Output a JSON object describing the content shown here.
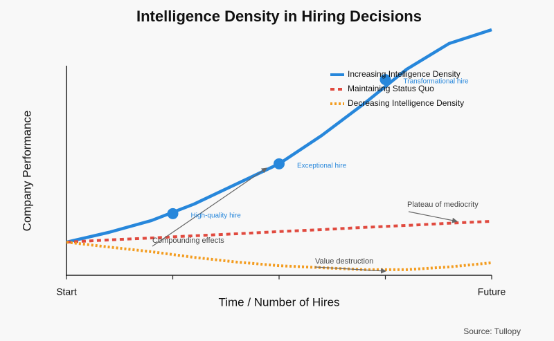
{
  "chart_data": {
    "type": "line",
    "title": "Intelligence Density in Hiring Decisions",
    "xlabel": "Time / Number of Hires",
    "ylabel": "Company Performance",
    "source": "Source: Tullopy",
    "x": [
      0,
      1,
      2,
      3,
      4,
      5,
      6,
      7,
      8,
      9,
      10
    ],
    "xlim": [
      0,
      10
    ],
    "xticks": [
      {
        "value": 0,
        "label": "Start"
      },
      {
        "value": 2.5,
        "label": null
      },
      {
        "value": 5,
        "label": null
      },
      {
        "value": 7.5,
        "label": null
      },
      {
        "value": 10,
        "label": "Future"
      }
    ],
    "ylim": [
      0,
      100
    ],
    "legend": "upper right",
    "series": [
      {
        "name": "Increasing Intelligence Density",
        "color": "#2787db",
        "style": "solid",
        "values": [
          13.5,
          17.5,
          22.3,
          29,
          37.2,
          45.4,
          56.9,
          69.9,
          83.9,
          94.4,
          100
        ]
      },
      {
        "name": "Maintaining Status Quo",
        "color": "#e04a3f",
        "style": "dashed",
        "values": [
          13.5,
          14.4,
          15.2,
          16.1,
          16.9,
          17.8,
          18.6,
          19.5,
          20.3,
          21.2,
          22
        ]
      },
      {
        "name": "Decreasing Intelligence Density",
        "color": "#f39c1f",
        "style": "dotted",
        "values": [
          13.5,
          11.5,
          9.6,
          7.3,
          5.4,
          3.9,
          3.1,
          2.3,
          2.3,
          3.4,
          5.1
        ]
      }
    ],
    "points": [
      {
        "label": "High-quality hire",
        "x": 2.5,
        "y": 25.1
      },
      {
        "label": "Exceptional hire",
        "x": 5,
        "y": 45.4
      },
      {
        "label": "Transformational hire",
        "x": 7.5,
        "y": 79.7
      }
    ],
    "annotations": [
      "Compounding effects",
      "Plateau of mediocrity",
      "Value destruction"
    ]
  }
}
